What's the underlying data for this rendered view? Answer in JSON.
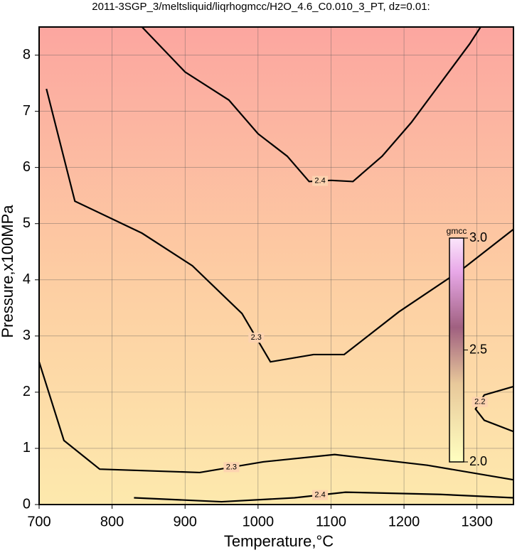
{
  "chart_data": {
    "type": "contour",
    "title": "2011-3SGP_3/meltsliquid/liqrhogmcc/H2O_4.6_C0.010_3_PT, dz=0.01:",
    "xlabel": "Temperature,°C",
    "ylabel": "Pressure,x100MPa",
    "xlim": [
      700,
      1350
    ],
    "ylim": [
      0,
      8.5
    ],
    "xticks": [
      700,
      800,
      900,
      1000,
      1100,
      1200,
      1300
    ],
    "yticks": [
      0,
      1,
      2,
      3,
      4,
      5,
      6,
      7,
      8
    ],
    "grid": true,
    "contours": [
      {
        "level": 2.4,
        "x": [
          841,
          900,
          960,
          1000,
          1040,
          1070,
          1100,
          1130,
          1170,
          1210,
          1250,
          1290,
          1305
        ],
        "y": [
          8.5,
          7.7,
          7.2,
          6.6,
          6.2,
          5.75,
          5.77,
          5.75,
          6.2,
          6.8,
          7.5,
          8.2,
          8.5
        ]
      },
      {
        "level": 2.3,
        "x": [
          710,
          749,
          841,
          910,
          978,
          1017,
          1076,
          1118,
          1193,
          1280,
          1350
        ],
        "y": [
          7.4,
          5.4,
          4.83,
          4.25,
          3.4,
          2.54,
          2.67,
          2.67,
          3.43,
          4.19,
          4.9
        ]
      },
      {
        "level": 2.3,
        "x": [
          700,
          734,
          783,
          920,
          1007,
          1105,
          1232,
          1350
        ],
        "y": [
          2.54,
          1.14,
          0.63,
          0.57,
          0.76,
          0.89,
          0.7,
          0.44
        ]
      },
      {
        "level": 2.4,
        "x": [
          830,
          950,
          1050,
          1120,
          1250,
          1350
        ],
        "y": [
          0.12,
          0.05,
          0.12,
          0.22,
          0.18,
          0.12
        ]
      },
      {
        "level": 2.2,
        "x": [
          1350,
          1310,
          1298,
          1310,
          1350
        ],
        "y": [
          2.1,
          1.95,
          1.7,
          1.5,
          1.3
        ]
      }
    ],
    "colorbar": {
      "label": "gmcc",
      "lim": [
        2,
        3
      ],
      "ticks": [
        {
          "value": 2,
          "label": "2.0"
        },
        2.5,
        {
          "value": 3,
          "label": "3.0"
        }
      ]
    }
  }
}
